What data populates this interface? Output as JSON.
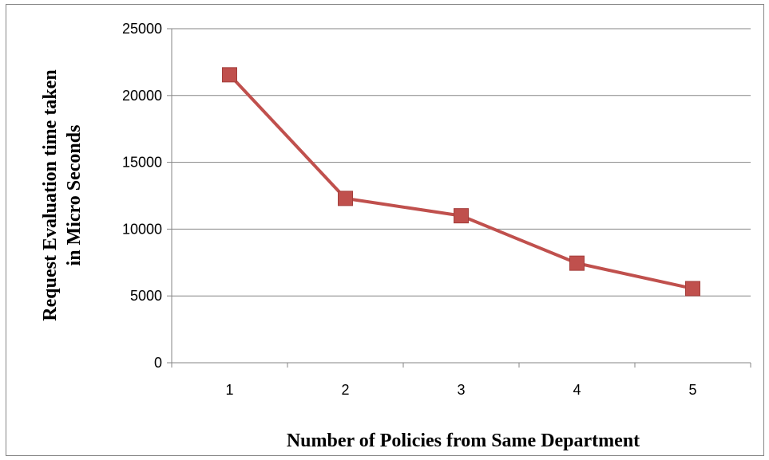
{
  "chart_data": {
    "type": "line",
    "x": [
      1,
      2,
      3,
      4,
      5
    ],
    "categories": [
      "1",
      "2",
      "3",
      "4",
      "5"
    ],
    "series": [
      {
        "values": [
          21550,
          12300,
          11000,
          7450,
          5550
        ],
        "color": "#c0504d",
        "marker": "square"
      }
    ],
    "ylim": [
      0,
      25000
    ],
    "yticks": [
      "0",
      "5000",
      "10000",
      "15000",
      "20000",
      "25000"
    ],
    "xlabel": "Number of Policies from Same Department",
    "ylabel_line1": "Request Evaluation time taken",
    "ylabel_line2": "in Micro Seconds",
    "grid": true,
    "legend": "none"
  }
}
